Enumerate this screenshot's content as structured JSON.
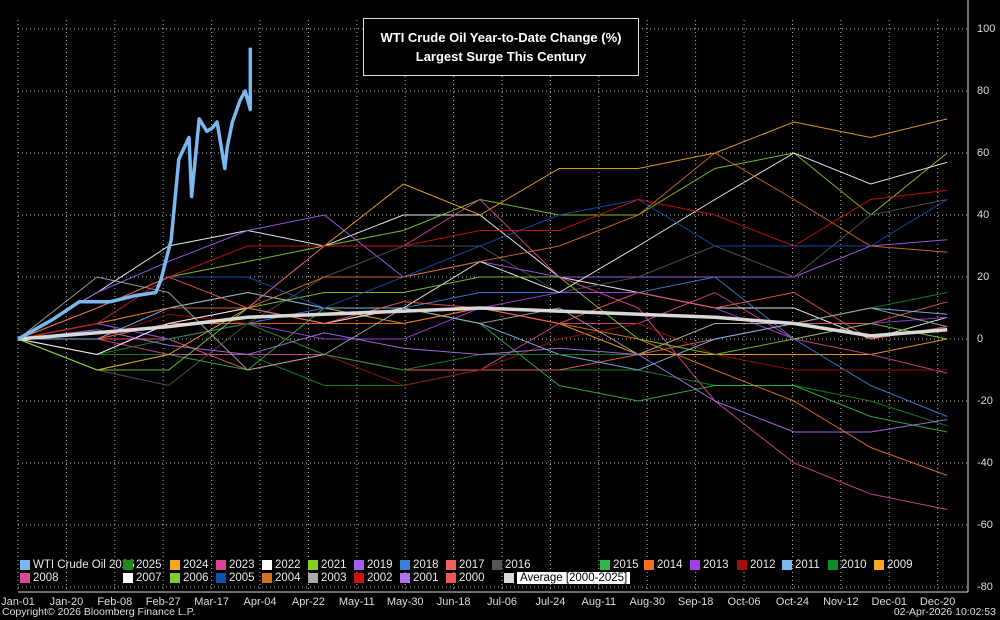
{
  "chart_data": {
    "type": "line",
    "title": "WTI Crude Oil Year-to-Date Change (%)",
    "subtitle": "Largest Surge This Century",
    "ylim": [
      -80,
      100
    ],
    "yticks": [
      100,
      80,
      60,
      40,
      20,
      0,
      -20,
      -40,
      -60,
      -80
    ],
    "xticks": [
      "Jan-01",
      "Jan-20",
      "Feb-08",
      "Feb-27",
      "Mar-17",
      "Apr-04",
      "Apr-22",
      "May-11",
      "May-30",
      "Jun-18",
      "Jul-06",
      "Jul-24",
      "Aug-11",
      "Aug-30",
      "Sep-18",
      "Oct-06",
      "Oct-24",
      "Nov-12",
      "Dec-01",
      "Dec-20"
    ],
    "grid": true,
    "y_axis_side": "right",
    "legend_position": "bottom",
    "x": [
      "01-01",
      "02-01",
      "03-01",
      "04-01",
      "05-01",
      "06-01",
      "07-01",
      "08-01",
      "09-01",
      "10-01",
      "11-01",
      "12-01",
      "12-31"
    ],
    "highlight": {
      "name": "WTI Crude Oil 2026",
      "color": "#7ab8f0",
      "points": [
        [
          "01-01",
          0
        ],
        [
          "01-14",
          6
        ],
        [
          "01-25",
          12
        ],
        [
          "02-06",
          12
        ],
        [
          "02-16",
          14
        ],
        [
          "02-24",
          15
        ],
        [
          "02-26",
          19
        ],
        [
          "03-02",
          32
        ],
        [
          "03-05",
          58
        ],
        [
          "03-09",
          65
        ],
        [
          "03-10",
          46
        ],
        [
          "03-13",
          71
        ],
        [
          "03-16",
          67
        ],
        [
          "03-18",
          68
        ],
        [
          "03-20",
          70
        ],
        [
          "03-23",
          55
        ],
        [
          "03-24",
          62
        ],
        [
          "03-26",
          70
        ],
        [
          "03-29",
          77
        ],
        [
          "03-31",
          80
        ],
        [
          "04-02",
          74
        ],
        [
          "04-02",
          94
        ]
      ]
    },
    "series": [
      {
        "name": "2025",
        "color": "#1a8a1a",
        "values": [
          0,
          -5,
          -5,
          -5,
          -15,
          -15,
          -10,
          -10,
          -10,
          -15,
          -15,
          -20,
          -28
        ]
      },
      {
        "name": "2024",
        "color": "#f5a623",
        "values": [
          0,
          5,
          10,
          15,
          10,
          5,
          10,
          5,
          -5,
          -5,
          -5,
          -5,
          0
        ]
      },
      {
        "name": "2023",
        "color": "#d6449a",
        "values": [
          0,
          0,
          -5,
          -5,
          -5,
          -10,
          -10,
          5,
          5,
          15,
          0,
          -5,
          -11
        ]
      },
      {
        "name": "2022",
        "color": "#ffffff",
        "values": [
          0,
          15,
          30,
          35,
          30,
          40,
          40,
          20,
          15,
          10,
          10,
          0,
          7
        ]
      },
      {
        "name": "2021",
        "color": "#88cc22",
        "values": [
          0,
          10,
          20,
          25,
          30,
          35,
          45,
          40,
          40,
          55,
          60,
          40,
          60
        ]
      },
      {
        "name": "2019",
        "color": "#a45cf0",
        "values": [
          0,
          15,
          25,
          35,
          40,
          20,
          25,
          20,
          20,
          20,
          20,
          30,
          32
        ]
      },
      {
        "name": "2018",
        "color": "#3a82d8",
        "values": [
          0,
          5,
          0,
          5,
          10,
          10,
          15,
          15,
          15,
          20,
          0,
          -15,
          -25
        ]
      },
      {
        "name": "2017",
        "color": "#f06060",
        "values": [
          0,
          0,
          0,
          -10,
          -5,
          -10,
          -10,
          -10,
          -5,
          0,
          5,
          5,
          12
        ]
      },
      {
        "name": "2016",
        "color": "#555555",
        "values": [
          0,
          -10,
          -15,
          5,
          20,
          30,
          30,
          15,
          20,
          30,
          20,
          40,
          45
        ]
      },
      {
        "name": "2015",
        "color": "#2fb84a",
        "values": [
          0,
          -10,
          -5,
          -10,
          10,
          10,
          5,
          -15,
          -20,
          -15,
          -15,
          -25,
          -30
        ]
      },
      {
        "name": "2014",
        "color": "#f07020",
        "values": [
          0,
          0,
          5,
          5,
          5,
          5,
          10,
          5,
          0,
          -10,
          -20,
          -35,
          -44
        ]
      },
      {
        "name": "2013",
        "color": "#a040e0",
        "values": [
          0,
          5,
          0,
          5,
          0,
          0,
          10,
          15,
          15,
          10,
          0,
          5,
          7
        ]
      },
      {
        "name": "2012",
        "color": "#a01010",
        "values": [
          0,
          0,
          8,
          5,
          -5,
          -15,
          -10,
          0,
          5,
          -5,
          -10,
          -10,
          -10
        ]
      },
      {
        "name": "2011",
        "color": "#7ab8f0",
        "values": [
          0,
          0,
          10,
          15,
          10,
          10,
          5,
          -5,
          -10,
          0,
          5,
          10,
          8
        ]
      },
      {
        "name": "2010",
        "color": "#128a28",
        "values": [
          0,
          -5,
          0,
          5,
          -5,
          -10,
          -5,
          -5,
          -5,
          5,
          5,
          10,
          15
        ]
      },
      {
        "name": "2009",
        "color": "#f5a820",
        "values": [
          0,
          -10,
          -5,
          10,
          30,
          50,
          40,
          55,
          55,
          60,
          70,
          65,
          71
        ]
      },
      {
        "name": "2008",
        "color": "#d84898",
        "values": [
          0,
          -5,
          5,
          10,
          30,
          30,
          45,
          20,
          10,
          -20,
          -40,
          -50,
          -55
        ]
      },
      {
        "name": "2007",
        "color": "#ffffff",
        "values": [
          0,
          -5,
          5,
          10,
          5,
          10,
          25,
          15,
          30,
          45,
          60,
          50,
          57
        ]
      },
      {
        "name": "2006",
        "color": "#80cc30",
        "values": [
          0,
          -10,
          -10,
          10,
          15,
          15,
          20,
          20,
          0,
          -5,
          0,
          5,
          0
        ]
      },
      {
        "name": "2005",
        "color": "#1050b0",
        "values": [
          0,
          5,
          20,
          20,
          10,
          20,
          30,
          40,
          45,
          30,
          30,
          30,
          45
        ]
      },
      {
        "name": "2004",
        "color": "#d07020",
        "values": [
          0,
          5,
          10,
          10,
          20,
          20,
          25,
          30,
          40,
          60,
          45,
          30,
          28
        ]
      },
      {
        "name": "2003",
        "color": "#aaaaaa",
        "values": [
          0,
          20,
          15,
          -10,
          -5,
          10,
          5,
          10,
          -5,
          5,
          5,
          10,
          4
        ]
      },
      {
        "name": "2002",
        "color": "#d01010",
        "values": [
          0,
          5,
          20,
          30,
          30,
          30,
          35,
          35,
          45,
          40,
          30,
          45,
          48
        ]
      },
      {
        "name": "2001",
        "color": "#b070f0",
        "values": [
          0,
          3,
          -2,
          -5,
          2,
          -3,
          -5,
          -3,
          -5,
          -20,
          -30,
          -30,
          -26
        ]
      },
      {
        "name": "2000",
        "color": "#f05858",
        "values": [
          0,
          10,
          20,
          10,
          5,
          12,
          10,
          5,
          15,
          10,
          15,
          0,
          4
        ]
      }
    ],
    "average": {
      "name": "Average  [2000-2025]",
      "color": "#d8d8d8",
      "values": [
        0,
        2,
        4,
        7,
        8,
        9,
        10,
        9,
        8,
        7,
        5,
        1,
        3
      ]
    }
  },
  "footer": {
    "copyright": "Copyright© 2026 Bloomberg Finance L.P.",
    "timestamp": "02-Apr-2026 10:02:53"
  }
}
